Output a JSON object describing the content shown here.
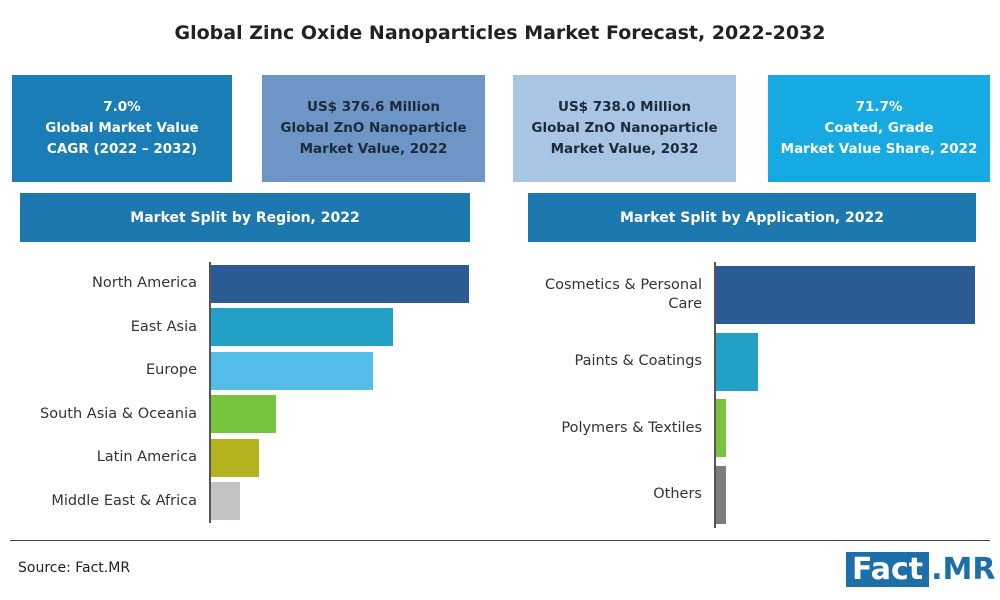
{
  "title": "Global Zinc Oxide Nanoparticles Market Forecast, 2022-2032",
  "cards": [
    {
      "lines": [
        "7.0%",
        "Global Market Value",
        "CAGR (2022 – 2032)"
      ],
      "color": "#1a7db5",
      "text_color": "#ffffff"
    },
    {
      "lines": [
        "US$ 376.6 Million",
        "Global ZnO Nanoparticle",
        "Market Value, 2022"
      ],
      "color": "#6d96c6",
      "text_color": "#1c2a3a"
    },
    {
      "lines": [
        "US$ 738.0 Million",
        "Global ZnO Nanoparticle",
        "Market Value, 2032"
      ],
      "color": "#a9c5e4",
      "text_color": "#1c2a3a"
    },
    {
      "lines": [
        "71.7%",
        "Coated, Grade",
        "Market Value Share, 2022"
      ],
      "color": "#17a9e1",
      "text_color": "#ffffff"
    }
  ],
  "chart_data": [
    {
      "type": "bar",
      "title": "Market Split by Region, 2022",
      "categories": [
        "North America",
        "East Asia",
        "Europe",
        "South Asia & Oceania",
        "Latin America",
        "Middle East & Africa"
      ],
      "values": [
        34.7,
        24.5,
        21.8,
        8.7,
        6.5,
        3.9
      ],
      "colors": [
        "#2b5b94",
        "#23a0c6",
        "#55bde9",
        "#78c43f",
        "#b4b21e",
        "#c3c4c6"
      ]
    },
    {
      "type": "bar",
      "title": "Market Split by Application, 2022",
      "categories": [
        "Cosmetics & Personal Care",
        "Paints & Coatings",
        "Polymers & Textiles",
        "Others"
      ],
      "values": [
        81,
        13,
        3,
        3
      ],
      "colors": [
        "#2b5b94",
        "#23a0c6",
        "#78c43f",
        "#7d7d7d"
      ]
    }
  ],
  "source": "Source: Fact.MR",
  "logo": [
    "Fact",
    ".MR"
  ]
}
